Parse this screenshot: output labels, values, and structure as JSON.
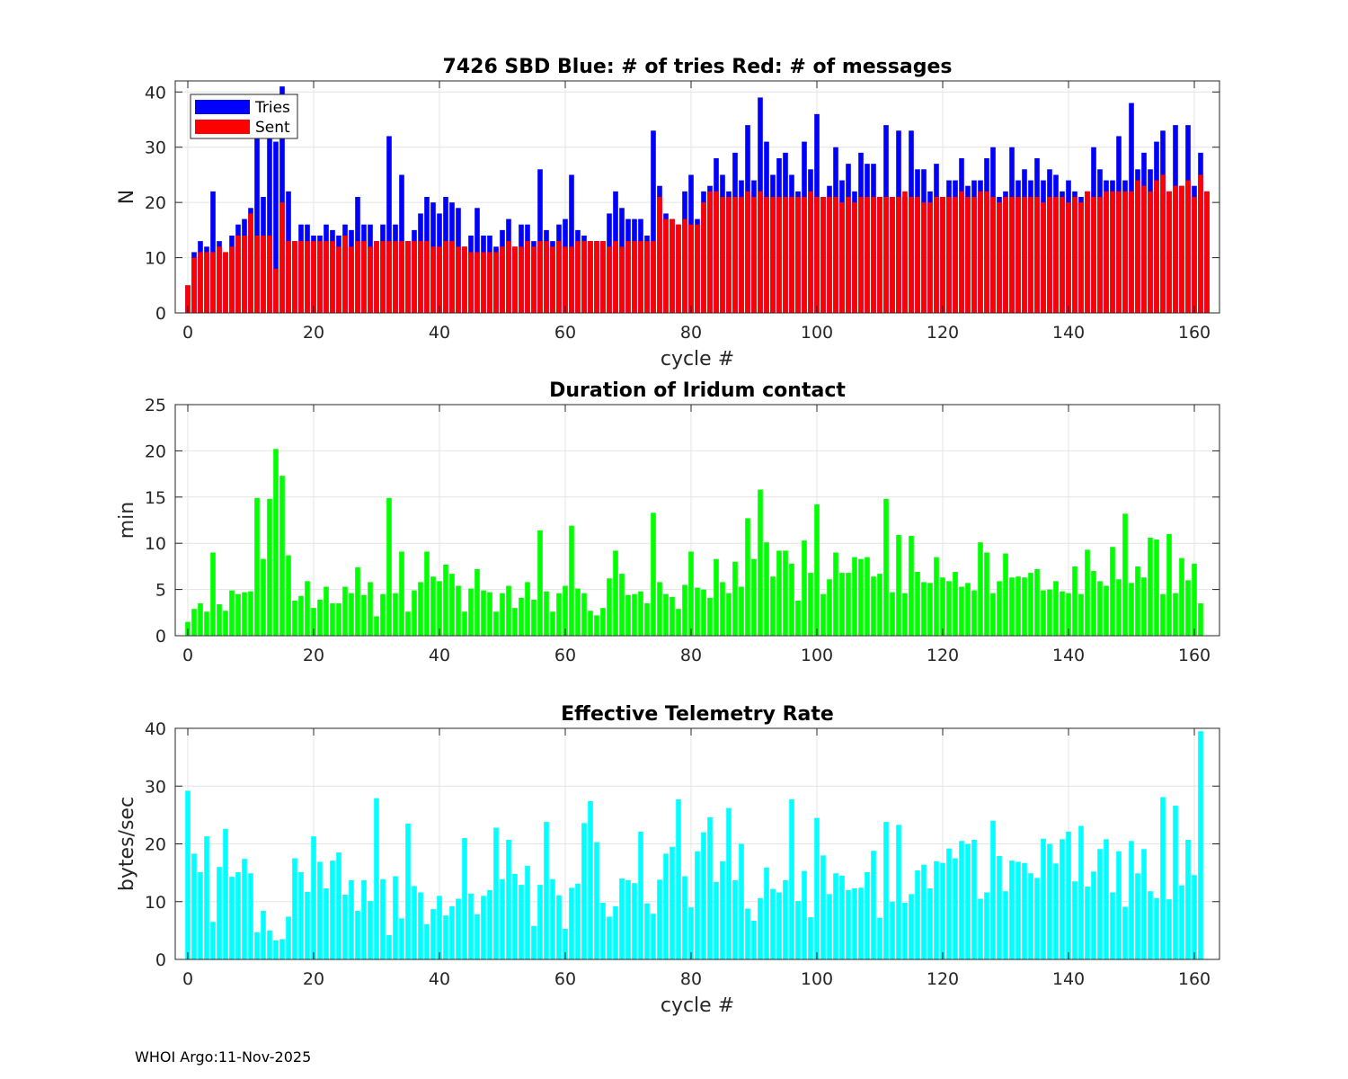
{
  "footer": "WHOI Argo:11-Nov-2025",
  "chart_data": [
    {
      "type": "bar",
      "title": "7426 SBD  Blue: # of tries   Red: # of messages",
      "xlabel": "cycle #",
      "ylabel": "N",
      "xlim": [
        -2,
        164
      ],
      "ylim": [
        0,
        42
      ],
      "xticks": [
        0,
        20,
        40,
        60,
        80,
        100,
        120,
        140,
        160
      ],
      "yticks": [
        0,
        10,
        20,
        30,
        40
      ],
      "legend": {
        "position": "top-left",
        "entries": [
          {
            "name": "Tries",
            "color": "#0000ff"
          },
          {
            "name": "Sent",
            "color": "#ff0000"
          }
        ]
      },
      "x_start": 0,
      "series": [
        {
          "name": "Tries",
          "color": "#0000ff",
          "values": [
            5,
            11,
            13,
            12,
            22,
            13,
            11,
            14,
            16,
            17,
            19,
            32,
            21,
            32,
            31,
            41,
            22,
            13,
            16,
            16,
            14,
            14,
            16,
            15,
            14,
            16,
            15,
            21,
            16,
            16,
            13,
            16,
            32,
            16,
            25,
            13,
            15,
            18,
            21,
            20,
            18,
            21,
            20,
            19,
            12,
            14,
            19,
            14,
            14,
            12,
            15,
            17,
            12,
            16,
            16,
            13,
            26,
            15,
            13,
            16,
            17,
            25,
            15,
            14,
            13,
            13,
            13,
            18,
            22,
            19,
            17,
            17,
            17,
            14,
            33,
            23,
            18,
            17,
            16,
            22,
            25,
            17,
            22,
            23,
            28,
            25,
            22,
            29,
            24,
            34,
            24,
            39,
            31,
            25,
            28,
            29,
            25,
            22,
            31,
            26,
            36,
            21,
            23,
            30,
            24,
            27,
            22,
            29,
            27,
            27,
            21,
            34,
            21,
            33,
            21,
            33,
            26,
            26,
            22,
            27,
            21,
            24,
            24,
            28,
            23,
            24,
            24,
            28,
            30,
            21,
            22,
            30,
            24,
            26,
            24,
            28,
            24,
            26,
            25,
            22,
            24,
            22,
            21,
            22,
            30,
            26,
            24,
            24,
            32,
            24,
            38,
            26,
            29,
            26,
            31,
            33,
            22,
            34,
            23,
            34,
            23,
            29,
            22
          ]
        },
        {
          "name": "Sent",
          "color": "#ff0000",
          "values": [
            5,
            10,
            11,
            11,
            11,
            12,
            11,
            12,
            14,
            14,
            18,
            14,
            14,
            14,
            8,
            20,
            13,
            13,
            13,
            13,
            13,
            13,
            13,
            13,
            12,
            14,
            12,
            13,
            13,
            12,
            13,
            13,
            13,
            13,
            13,
            13,
            13,
            13,
            13,
            12,
            12,
            13,
            13,
            12,
            12,
            11,
            11,
            11,
            11,
            11,
            12,
            13,
            12,
            12,
            13,
            12,
            13,
            13,
            12,
            13,
            12,
            12,
            13,
            13,
            13,
            13,
            13,
            12,
            13,
            12,
            13,
            13,
            13,
            13,
            13,
            21,
            17,
            17,
            16,
            17,
            16,
            16,
            20,
            22,
            22,
            21,
            21,
            21,
            21,
            22,
            21,
            22,
            21,
            21,
            21,
            21,
            21,
            21,
            21,
            22,
            21,
            21,
            21,
            21,
            20,
            21,
            20,
            21,
            21,
            21,
            21,
            21,
            21,
            21,
            22,
            21,
            21,
            20,
            20,
            21,
            21,
            21,
            21,
            22,
            21,
            21,
            22,
            22,
            21,
            20,
            21,
            21,
            21,
            21,
            21,
            21,
            20,
            21,
            21,
            21,
            20,
            21,
            20,
            22,
            21,
            21,
            22,
            22,
            22,
            22,
            22,
            24,
            23,
            22,
            24,
            25,
            22,
            23,
            23,
            24,
            21,
            25,
            22
          ]
        }
      ]
    },
    {
      "type": "bar",
      "title": "Duration of Iridum contact",
      "xlabel": "",
      "ylabel": "min",
      "xlim": [
        -2,
        164
      ],
      "ylim": [
        0,
        25
      ],
      "xticks": [
        0,
        20,
        40,
        60,
        80,
        100,
        120,
        140,
        160
      ],
      "yticks": [
        0,
        5,
        10,
        15,
        20,
        25
      ],
      "x_start": 0,
      "series": [
        {
          "name": "Duration",
          "color": "#00ff00",
          "values": [
            1.5,
            2.9,
            3.5,
            2.6,
            9.0,
            3.4,
            2.7,
            4.9,
            4.5,
            4.7,
            4.8,
            14.9,
            8.3,
            14.8,
            20.2,
            17.3,
            8.7,
            3.8,
            4.3,
            5.9,
            3.0,
            3.9,
            5.3,
            3.5,
            3.5,
            5.3,
            4.6,
            7.4,
            4.4,
            5.8,
            2.1,
            4.5,
            14.9,
            4.6,
            9.1,
            2.6,
            4.9,
            5.8,
            9.1,
            6.4,
            5.9,
            7.7,
            6.7,
            5.4,
            2.6,
            5.1,
            7.2,
            4.9,
            4.7,
            2.6,
            4.6,
            5.4,
            3.0,
            4.1,
            5.8,
            3.9,
            11.4,
            4.8,
            2.6,
            4.6,
            5.4,
            11.9,
            5.1,
            4.6,
            2.7,
            2.2,
            3.0,
            6.2,
            9.2,
            6.7,
            4.4,
            4.5,
            4.8,
            3.5,
            13.3,
            5.8,
            4.5,
            4.2,
            2.9,
            5.5,
            9.1,
            5.2,
            5.0,
            4.1,
            8.3,
            5.8,
            4.6,
            8.0,
            5.3,
            12.7,
            8.3,
            15.8,
            10.1,
            6.4,
            9.2,
            9.2,
            7.8,
            3.8,
            10.3,
            6.8,
            14.2,
            4.5,
            6.1,
            9.0,
            6.8,
            6.8,
            8.5,
            8.3,
            8.5,
            6.4,
            6.7,
            14.8,
            4.7,
            10.9,
            4.6,
            10.8,
            6.9,
            5.8,
            5.7,
            8.5,
            6.3,
            5.9,
            6.9,
            5.3,
            5.7,
            4.9,
            10.1,
            9.0,
            4.6,
            5.9,
            8.9,
            6.3,
            6.4,
            6.3,
            6.8,
            7.2,
            4.9,
            5.0,
            5.9,
            4.8,
            4.6,
            7.5,
            4.5,
            9.3,
            7.0,
            5.9,
            5.4,
            9.6,
            6.1,
            13.2,
            5.7,
            7.5,
            6.3,
            10.6,
            10.4,
            4.5,
            11.0,
            4.6,
            8.4,
            6.0,
            7.8,
            3.5
          ]
        }
      ]
    },
    {
      "type": "bar",
      "title": "Effective Telemetry Rate",
      "xlabel": "cycle #",
      "ylabel": "bytes/sec",
      "xlim": [
        -2,
        164
      ],
      "ylim": [
        0,
        40
      ],
      "xticks": [
        0,
        20,
        40,
        60,
        80,
        100,
        120,
        140,
        160
      ],
      "yticks": [
        0,
        10,
        20,
        30,
        40
      ],
      "x_start": 0,
      "series": [
        {
          "name": "Rate",
          "color": "#00ffff",
          "values": [
            29.2,
            18.3,
            15.1,
            21.3,
            6.5,
            16.0,
            22.6,
            14.3,
            15.1,
            17.4,
            14.9,
            4.7,
            8.4,
            5.0,
            3.3,
            3.5,
            7.4,
            17.5,
            15.1,
            11.7,
            21.3,
            16.9,
            12.3,
            17.1,
            18.5,
            11.2,
            13.7,
            8.4,
            13.7,
            10.1,
            27.9,
            13.9,
            4.2,
            14.4,
            7.1,
            23.5,
            12.7,
            11.6,
            6.1,
            8.7,
            11.0,
            7.6,
            9.2,
            10.5,
            21.0,
            11.4,
            7.8,
            11.0,
            12.0,
            22.8,
            13.9,
            20.7,
            14.8,
            12.9,
            16.2,
            5.8,
            12.9,
            23.8,
            13.9,
            11.1,
            5.3,
            12.4,
            13.1,
            23.6,
            27.4,
            20.3,
            9.8,
            7.4,
            9.2,
            14.0,
            13.7,
            13.2,
            22.1,
            9.7,
            7.9,
            13.8,
            18.3,
            19.5,
            27.7,
            14.4,
            9.0,
            18.7,
            22.0,
            24.6,
            13.4,
            17.0,
            26.2,
            13.7,
            20.0,
            8.8,
            6.7,
            10.6,
            15.9,
            12.2,
            11.6,
            13.7,
            27.7,
            10.1,
            15.3,
            7.3,
            24.5,
            18.0,
            11.3,
            14.9,
            14.5,
            12.0,
            12.3,
            12.4,
            15.1,
            18.8,
            7.2,
            23.8,
            10.0,
            23.3,
            9.8,
            11.3,
            15.4,
            16.4,
            12.3,
            17.0,
            16.7,
            19.2,
            17.5,
            20.5,
            20.0,
            20.7,
            10.5,
            11.6,
            24.0,
            17.9,
            11.8,
            17.1,
            16.9,
            16.7,
            14.9,
            14.1,
            20.9,
            20.0,
            16.6,
            20.8,
            22.1,
            13.5,
            23.1,
            12.6,
            15.2,
            19.1,
            20.8,
            11.6,
            18.7,
            9.1,
            20.5,
            14.9,
            19.1,
            11.8,
            10.6,
            28.1,
            10.4,
            26.6,
            12.8,
            20.7,
            14.6,
            39.5
          ]
        }
      ]
    }
  ]
}
